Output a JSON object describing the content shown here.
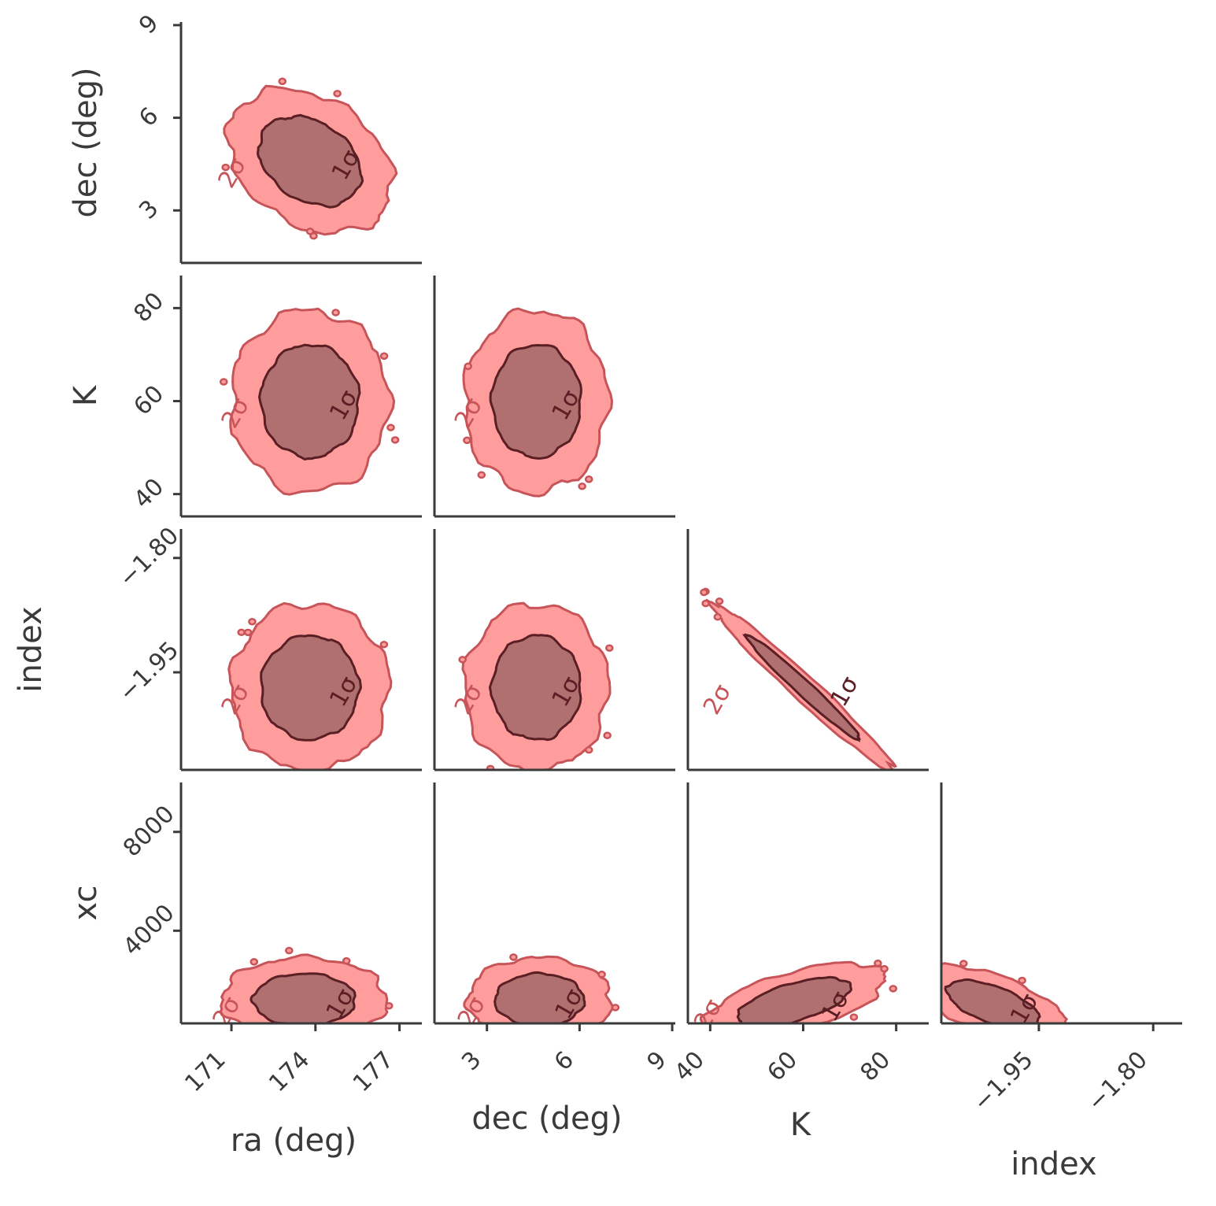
{
  "chart_data": {
    "type": "corner",
    "parameters": [
      {
        "key": "ra",
        "label": "ra (deg)",
        "ticks": [
          171,
          174,
          177
        ],
        "tick_labels": [
          "171",
          "174",
          "177"
        ],
        "range": [
          169.2,
          177.8
        ]
      },
      {
        "key": "dec",
        "label": "dec (deg)",
        "ticks": [
          3,
          6,
          9
        ],
        "tick_labels": [
          "3",
          "6",
          "9"
        ],
        "range": [
          1.3,
          9.1
        ]
      },
      {
        "key": "K",
        "label": "K",
        "ticks": [
          40,
          60,
          80
        ],
        "tick_labels": [
          "40",
          "60",
          "80"
        ],
        "range": [
          35.2,
          87.0
        ]
      },
      {
        "key": "index",
        "label": "index",
        "ticks": [
          -1.95,
          -1.8
        ],
        "tick_labels": [
          "−1.95",
          "−1.80"
        ],
        "range": [
          -2.078,
          -1.762
        ]
      },
      {
        "key": "xc",
        "label": "xc",
        "ticks": [
          4000,
          8000
        ],
        "tick_labels": [
          "4000",
          "8000"
        ],
        "range": [
          250,
          10000
        ]
      }
    ],
    "panels": [
      {
        "x": "ra",
        "y": "dec",
        "center": [
          173.8,
          4.6
        ],
        "sigma": [
          1.2,
          0.95
        ],
        "corr": -0.3
      },
      {
        "x": "ra",
        "y": "K",
        "center": [
          173.8,
          60
        ],
        "sigma": [
          1.15,
          8
        ],
        "corr": 0.0
      },
      {
        "x": "dec",
        "y": "K",
        "center": [
          4.6,
          60
        ],
        "sigma": [
          0.95,
          8
        ],
        "corr": 0.0
      },
      {
        "x": "ra",
        "y": "index",
        "center": [
          173.8,
          -1.97
        ],
        "sigma": [
          1.15,
          0.045
        ],
        "corr": 0.0
      },
      {
        "x": "dec",
        "y": "index",
        "center": [
          4.6,
          -1.97
        ],
        "sigma": [
          0.95,
          0.045
        ],
        "corr": 0.0
      },
      {
        "x": "K",
        "y": "index",
        "center": [
          60,
          -1.97
        ],
        "sigma": [
          8,
          0.045
        ],
        "corr": -0.98
      },
      {
        "x": "ra",
        "y": "xc",
        "center": [
          173.6,
          1200
        ],
        "sigma": [
          1.2,
          700
        ],
        "corr": 0.0
      },
      {
        "x": "dec",
        "y": "xc",
        "center": [
          4.7,
          1200
        ],
        "sigma": [
          0.95,
          700
        ],
        "corr": 0.0
      },
      {
        "x": "K",
        "y": "xc",
        "center": [
          58,
          1100
        ],
        "sigma": [
          8,
          650
        ],
        "corr": 0.6
      },
      {
        "x": "index",
        "y": "xc",
        "center": [
          -2.01,
          1000
        ],
        "sigma": [
          0.04,
          650
        ],
        "corr": -0.6
      }
    ],
    "contour_levels": [
      "1σ",
      "2σ"
    ],
    "colors": {
      "inner_fill": "#b07070",
      "inner_line": "#5a1f24",
      "outer_fill": "#ff9c9c",
      "outer_line": "#c75458",
      "axis": "#3a3a3a"
    }
  }
}
